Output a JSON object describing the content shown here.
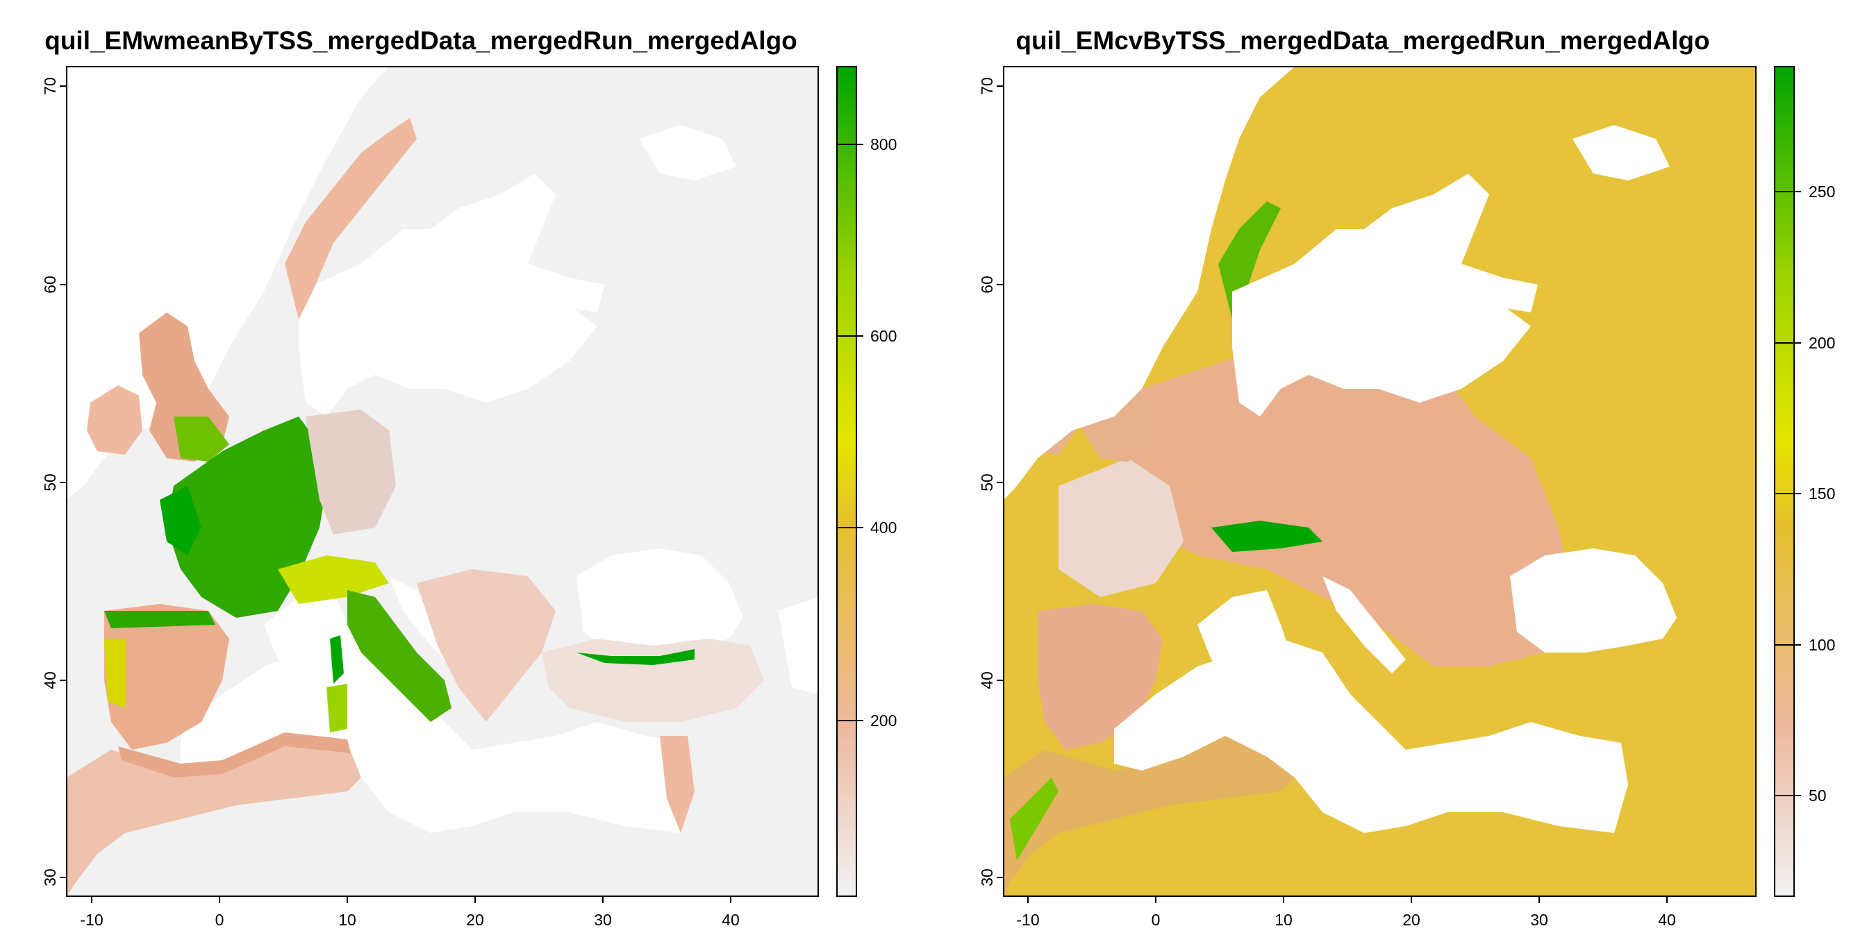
{
  "panels": [
    {
      "title": "quil_EMwmeanByTSS_mergedData_mergedRun_mergedAlgo",
      "x_ticks": [
        "-10",
        "0",
        "10",
        "20",
        "30",
        "40"
      ],
      "y_ticks": [
        "30",
        "40",
        "50",
        "60",
        "70"
      ],
      "legend_ticks": [
        "200",
        "400",
        "600",
        "800"
      ],
      "legend_range": [
        0,
        870
      ],
      "legend_colors": [
        "#f2f2f2",
        "#eeb99f",
        "#e6c02c",
        "#e6e600",
        "#9bd300",
        "#00a600"
      ]
    },
    {
      "title": "quil_EMcvByTSS_mergedData_mergedRun_mergedAlgo",
      "x_ticks": [
        "-10",
        "0",
        "10",
        "20",
        "30",
        "40"
      ],
      "y_ticks": [
        "30",
        "40",
        "50",
        "60",
        "70"
      ],
      "legend_ticks": [
        "50",
        "100",
        "150",
        "200",
        "250"
      ],
      "legend_range": [
        15,
        290
      ],
      "legend_colors": [
        "#f2f2f2",
        "#eeb99f",
        "#e6c02c",
        "#e6e600",
        "#9bd300",
        "#00a600"
      ]
    }
  ],
  "chart_data": [
    {
      "type": "heatmap",
      "title": "quil_EMwmeanByTSS_mergedData_mergedRun_mergedAlgo",
      "xlim": [
        -12,
        47
      ],
      "ylim": [
        29,
        71
      ],
      "colorbar_ticks": [
        200,
        400,
        600,
        800
      ],
      "colorbar_range": [
        0,
        870
      ]
    },
    {
      "type": "heatmap",
      "title": "quil_EMcvByTSS_mergedData_mergedRun_mergedAlgo",
      "xlim": [
        -12,
        47
      ],
      "ylim": [
        29,
        71
      ],
      "colorbar_ticks": [
        50,
        100,
        150,
        200,
        250
      ],
      "colorbar_range": [
        15,
        290
      ]
    }
  ]
}
